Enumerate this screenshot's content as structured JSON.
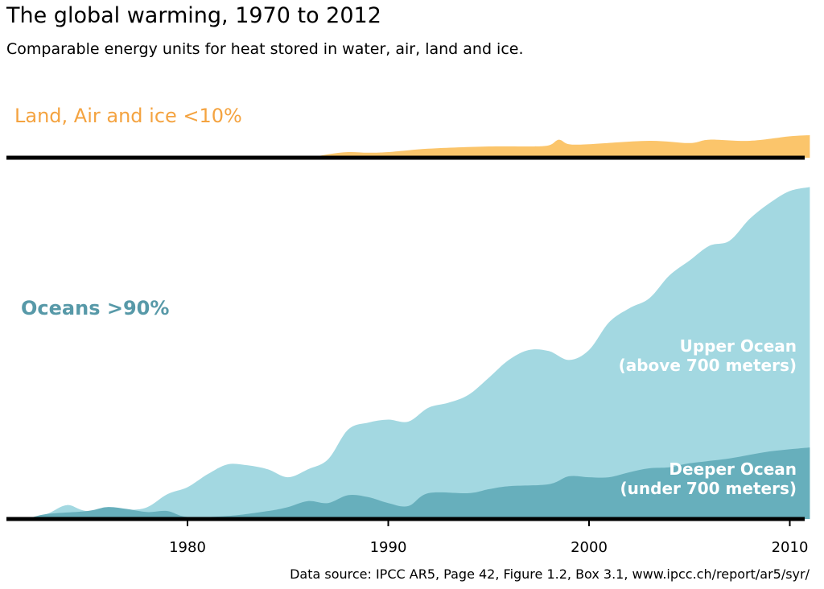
{
  "title": "The global warming, 1970 to 2012",
  "subtitle": "Comparable energy units for heat stored in water, air, land and ice.",
  "source": "Data source: IPCC AR5, Page 42, Figure 1.2, Box 3.1, www.ipcc.ch/report/ar5/syr/",
  "colors": {
    "land": "#FBC56B",
    "land_label": "#F4A340",
    "upper_ocean": "#A3D8E1",
    "deeper_ocean": "#67AFBC",
    "oceans_label": "#5799A8",
    "axis": "#000000"
  },
  "chart_data": {
    "type": "area",
    "xlim": [
      1972,
      2011
    ],
    "x_ticks": [
      1980,
      1990,
      2000,
      2010
    ],
    "annotations": {
      "land": "Land, Air and ice <10%",
      "oceans": "Oceans >90%",
      "upper_line1": "Upper Ocean",
      "upper_line2": "(above 700 meters)",
      "deeper_line1": "Deeper Ocean",
      "deeper_line2": "(under 700 meters)"
    },
    "land_series": {
      "x": [
        1972,
        1980,
        1983,
        1984,
        1985,
        1986,
        1987,
        1988,
        1989,
        1990,
        1992,
        1995,
        1997,
        1998,
        1998.5,
        1999,
        2000,
        2003,
        2005,
        2006,
        2008,
        2010,
        2011
      ],
      "y": [
        0,
        0,
        0,
        0.8,
        0,
        0,
        1.5,
        2.5,
        2.2,
        2.5,
        4,
        5,
        5,
        5.5,
        8,
        6,
        6,
        7.5,
        6.5,
        8,
        7.5,
        9.5,
        10
      ]
    },
    "deeper_ocean_series": {
      "x": [
        1972,
        1973,
        1975,
        1976,
        1977,
        1978,
        1979,
        1980,
        1982,
        1984,
        1985,
        1986,
        1987,
        1988,
        1989,
        1990,
        1991,
        1992,
        1994,
        1995,
        1996,
        1998,
        1999,
        2000,
        2001,
        2002,
        2003,
        2004,
        2005,
        2007,
        2009,
        2011
      ],
      "y": [
        0,
        5,
        8,
        12,
        10,
        7,
        8,
        2,
        3,
        8,
        12,
        18,
        16,
        24,
        22,
        16,
        13,
        26,
        26,
        30,
        33,
        35,
        43,
        42,
        42,
        47,
        51,
        52,
        56,
        61,
        68,
        72
      ]
    },
    "ocean_total_series": {
      "x": [
        1972,
        1973,
        1974,
        1975,
        1977,
        1978,
        1979,
        1980,
        1981,
        1982,
        1983,
        1984,
        1985,
        1986,
        1987,
        1988,
        1989,
        1990,
        1991,
        1992,
        1993,
        1994,
        1995,
        1996,
        1997,
        1998,
        1999,
        2000,
        2001,
        2002,
        2003,
        2004,
        2005,
        2006,
        2007,
        2008,
        2009,
        2010,
        2011
      ],
      "y": [
        0,
        5,
        14,
        8,
        9,
        12,
        25,
        32,
        45,
        55,
        54,
        50,
        42,
        50,
        60,
        90,
        97,
        100,
        98,
        112,
        117,
        125,
        142,
        160,
        170,
        169,
        160,
        170,
        198,
        212,
        222,
        245,
        260,
        275,
        280,
        302,
        318,
        330,
        334
      ]
    }
  }
}
